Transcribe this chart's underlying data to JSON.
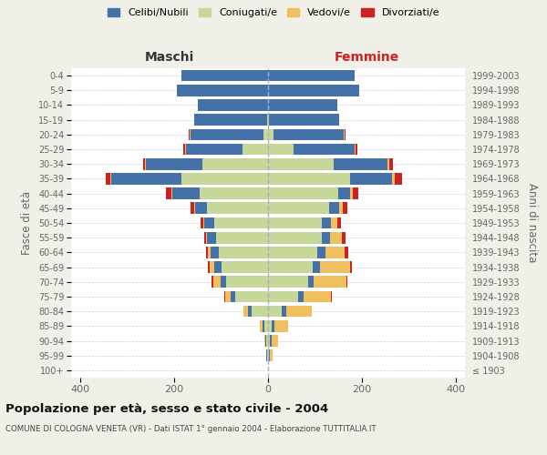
{
  "age_groups": [
    "100+",
    "95-99",
    "90-94",
    "85-89",
    "80-84",
    "75-79",
    "70-74",
    "65-69",
    "60-64",
    "55-59",
    "50-54",
    "45-49",
    "40-44",
    "35-39",
    "30-34",
    "25-29",
    "20-24",
    "15-19",
    "10-14",
    "5-9",
    "0-4"
  ],
  "birth_years": [
    "≤ 1903",
    "1904-1908",
    "1909-1913",
    "1914-1918",
    "1919-1923",
    "1924-1928",
    "1929-1933",
    "1934-1938",
    "1939-1943",
    "1944-1948",
    "1949-1953",
    "1954-1958",
    "1959-1963",
    "1964-1968",
    "1969-1973",
    "1974-1978",
    "1979-1983",
    "1984-1988",
    "1989-1993",
    "1994-1998",
    "1999-2003"
  ],
  "males": {
    "celibi": [
      0,
      2,
      3,
      4,
      8,
      10,
      12,
      15,
      17,
      20,
      22,
      25,
      60,
      150,
      120,
      120,
      155,
      155,
      150,
      195,
      185
    ],
    "coniugati": [
      0,
      2,
      3,
      8,
      35,
      70,
      90,
      100,
      105,
      110,
      115,
      130,
      145,
      185,
      140,
      55,
      10,
      2,
      0,
      0,
      0
    ],
    "vedovi": [
      0,
      0,
      2,
      5,
      10,
      12,
      15,
      10,
      6,
      3,
      2,
      2,
      2,
      2,
      2,
      2,
      2,
      0,
      0,
      0,
      0
    ],
    "divorziati": [
      0,
      0,
      0,
      0,
      0,
      2,
      4,
      3,
      5,
      4,
      4,
      8,
      10,
      10,
      5,
      4,
      2,
      0,
      0,
      0,
      0
    ]
  },
  "females": {
    "nubili": [
      0,
      2,
      3,
      5,
      8,
      10,
      12,
      15,
      18,
      18,
      20,
      22,
      25,
      90,
      115,
      130,
      150,
      150,
      148,
      195,
      185
    ],
    "coniugate": [
      0,
      2,
      4,
      8,
      30,
      65,
      85,
      95,
      105,
      115,
      115,
      130,
      150,
      175,
      140,
      55,
      12,
      2,
      0,
      0,
      0
    ],
    "vedove": [
      0,
      5,
      15,
      30,
      55,
      60,
      70,
      65,
      40,
      25,
      12,
      8,
      6,
      5,
      3,
      2,
      1,
      0,
      0,
      0,
      0
    ],
    "divorziate": [
      0,
      0,
      0,
      0,
      0,
      2,
      3,
      3,
      8,
      8,
      8,
      10,
      12,
      15,
      8,
      4,
      2,
      0,
      0,
      0,
      0
    ]
  },
  "colors": {
    "celibi": "#4472a8",
    "coniugati": "#c5d89a",
    "vedovi": "#f0c060",
    "divorziati": "#cc2222"
  },
  "xlim": 420,
  "title": "Popolazione per età, sesso e stato civile - 2004",
  "subtitle": "COMUNE DI COLOGNA VENETA (VR) - Dati ISTAT 1° gennaio 2004 - Elaborazione TUTTITALIA.IT",
  "ylabel": "Fasce di età",
  "ylabel_right": "Anni di nascita",
  "xlabel_left": "Maschi",
  "xlabel_right": "Femmine",
  "legend_labels": [
    "Celibi/Nubili",
    "Coniugati/e",
    "Vedovi/e",
    "Divorziati/e"
  ],
  "background_color": "#f0f0e8",
  "plot_bg": "#ffffff"
}
